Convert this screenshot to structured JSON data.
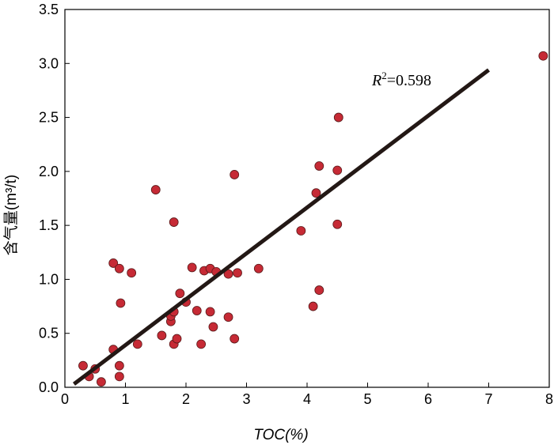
{
  "chart_data": {
    "type": "scatter",
    "xlabel": "TOC(%)",
    "ylabel": "含气量(m³/t)",
    "xlim": [
      0,
      8
    ],
    "ylim": [
      0,
      3.5
    ],
    "xticks": [
      "0",
      "1",
      "2",
      "3",
      "4",
      "5",
      "6",
      "7",
      "8"
    ],
    "yticks": [
      "0.0",
      "0.5",
      "1.0",
      "1.5",
      "2.0",
      "2.5",
      "3.0",
      "3.5"
    ],
    "grid": false,
    "marker_color": "#c62a35",
    "trendline_color": "#231815",
    "annotation": "R²=0.598",
    "trendline": {
      "x": [
        0.15,
        7.0
      ],
      "y": [
        0.03,
        2.94
      ]
    },
    "points": [
      {
        "x": 0.3,
        "y": 0.2
      },
      {
        "x": 0.4,
        "y": 0.1
      },
      {
        "x": 0.5,
        "y": 0.17
      },
      {
        "x": 0.6,
        "y": 0.05
      },
      {
        "x": 0.8,
        "y": 0.35
      },
      {
        "x": 0.8,
        "y": 1.15
      },
      {
        "x": 0.9,
        "y": 1.1
      },
      {
        "x": 0.9,
        "y": 0.1
      },
      {
        "x": 0.9,
        "y": 0.2
      },
      {
        "x": 0.92,
        "y": 0.78
      },
      {
        "x": 1.1,
        "y": 1.06
      },
      {
        "x": 1.2,
        "y": 0.4
      },
      {
        "x": 1.5,
        "y": 1.83
      },
      {
        "x": 1.6,
        "y": 0.48
      },
      {
        "x": 1.75,
        "y": 0.61
      },
      {
        "x": 1.75,
        "y": 0.66
      },
      {
        "x": 1.8,
        "y": 0.7
      },
      {
        "x": 1.8,
        "y": 0.4
      },
      {
        "x": 1.8,
        "y": 1.53
      },
      {
        "x": 1.85,
        "y": 0.45
      },
      {
        "x": 1.9,
        "y": 0.87
      },
      {
        "x": 2.0,
        "y": 0.79
      },
      {
        "x": 2.1,
        "y": 1.11
      },
      {
        "x": 2.18,
        "y": 0.71
      },
      {
        "x": 2.25,
        "y": 0.4
      },
      {
        "x": 2.3,
        "y": 1.08
      },
      {
        "x": 2.4,
        "y": 0.7
      },
      {
        "x": 2.4,
        "y": 1.1
      },
      {
        "x": 2.45,
        "y": 0.56
      },
      {
        "x": 2.5,
        "y": 1.07
      },
      {
        "x": 2.7,
        "y": 0.65
      },
      {
        "x": 2.7,
        "y": 1.05
      },
      {
        "x": 2.8,
        "y": 1.97
      },
      {
        "x": 2.8,
        "y": 0.45
      },
      {
        "x": 2.85,
        "y": 1.06
      },
      {
        "x": 3.2,
        "y": 1.1
      },
      {
        "x": 3.9,
        "y": 1.45
      },
      {
        "x": 4.1,
        "y": 0.75
      },
      {
        "x": 4.15,
        "y": 1.8
      },
      {
        "x": 4.2,
        "y": 2.05
      },
      {
        "x": 4.2,
        "y": 0.9
      },
      {
        "x": 4.5,
        "y": 2.01
      },
      {
        "x": 4.5,
        "y": 1.51
      },
      {
        "x": 4.52,
        "y": 2.5
      },
      {
        "x": 7.9,
        "y": 3.07
      }
    ]
  }
}
